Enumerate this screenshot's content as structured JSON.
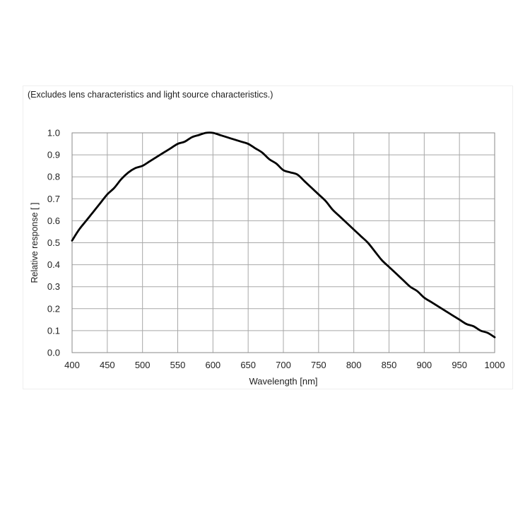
{
  "note": "(Excludes lens characteristics and light source characteristics.)",
  "chart_data": {
    "type": "line",
    "title": "",
    "xlabel": "Wavelength [nm]",
    "ylabel": "Relative response [ ]",
    "xlim": [
      400,
      1000
    ],
    "ylim": [
      0,
      1.0
    ],
    "xticks": [
      "400",
      "450",
      "500",
      "550",
      "600",
      "650",
      "700",
      "750",
      "800",
      "850",
      "900",
      "950",
      "1000"
    ],
    "yticks": [
      "0.0",
      "0.1",
      "0.2",
      "0.3",
      "0.4",
      "0.5",
      "0.6",
      "0.7",
      "0.8",
      "0.9",
      "1.0"
    ],
    "grid": true,
    "line_color": "#000000",
    "series": [
      {
        "x": [
          400,
          410,
          420,
          430,
          440,
          450,
          460,
          470,
          480,
          490,
          500,
          510,
          520,
          530,
          540,
          550,
          560,
          570,
          580,
          590,
          600,
          610,
          620,
          630,
          640,
          650,
          660,
          670,
          680,
          690,
          700,
          710,
          720,
          730,
          740,
          750,
          760,
          770,
          780,
          790,
          800,
          810,
          820,
          830,
          840,
          850,
          860,
          870,
          880,
          890,
          900,
          910,
          920,
          930,
          940,
          950,
          960,
          970,
          980,
          990,
          1000
        ],
        "y": [
          0.51,
          0.56,
          0.6,
          0.64,
          0.68,
          0.72,
          0.75,
          0.79,
          0.82,
          0.84,
          0.85,
          0.87,
          0.89,
          0.91,
          0.93,
          0.95,
          0.96,
          0.98,
          0.99,
          1.0,
          1.0,
          0.99,
          0.98,
          0.97,
          0.96,
          0.95,
          0.93,
          0.91,
          0.88,
          0.86,
          0.83,
          0.82,
          0.81,
          0.78,
          0.75,
          0.72,
          0.69,
          0.65,
          0.62,
          0.59,
          0.56,
          0.53,
          0.5,
          0.46,
          0.42,
          0.39,
          0.36,
          0.33,
          0.3,
          0.28,
          0.25,
          0.23,
          0.21,
          0.19,
          0.17,
          0.15,
          0.13,
          0.12,
          0.1,
          0.09,
          0.07
        ]
      }
    ]
  }
}
